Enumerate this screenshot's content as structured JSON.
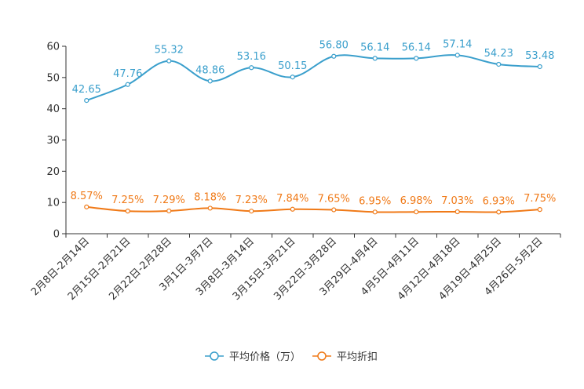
{
  "chart_data": {
    "type": "line",
    "categories": [
      "2月8日-2月14日",
      "2月15日-2月21日",
      "2月22日-2月28日",
      "3月1日-3月7日",
      "3月8日-3月14日",
      "3月15日-3月21日",
      "3月22日-3月28日",
      "3月29日-4月4日",
      "4月5日-4月11日",
      "4月12日-4月18日",
      "4月19日-4月25日",
      "4月26日-5月2日"
    ],
    "series": [
      {
        "name": "平均价格（万）",
        "color": "#3a9fcc",
        "values": [
          42.65,
          47.76,
          55.32,
          48.86,
          53.16,
          50.15,
          56.8,
          56.14,
          56.14,
          57.14,
          54.23,
          53.48
        ],
        "labels": [
          "42.65",
          "47.76",
          "55.32",
          "48.86",
          "53.16",
          "50.15",
          "56.80",
          "56.14",
          "56.14",
          "57.14",
          "54.23",
          "53.48"
        ]
      },
      {
        "name": "平均折扣",
        "color": "#f07a18",
        "values": [
          8.57,
          7.25,
          7.29,
          8.18,
          7.23,
          7.84,
          7.65,
          6.95,
          6.98,
          7.03,
          6.93,
          7.75
        ],
        "labels": [
          "8.57%",
          "7.25%",
          "7.29%",
          "8.18%",
          "7.23%",
          "7.84%",
          "7.65%",
          "6.95%",
          "6.98%",
          "7.03%",
          "6.93%",
          "7.75%"
        ]
      }
    ],
    "ylim": [
      0,
      60
    ],
    "yticks": [
      "0",
      "10",
      "20",
      "30",
      "40",
      "50",
      "60"
    ],
    "grid": false,
    "legend_position": "bottom-center",
    "axis_color": "#333333"
  }
}
